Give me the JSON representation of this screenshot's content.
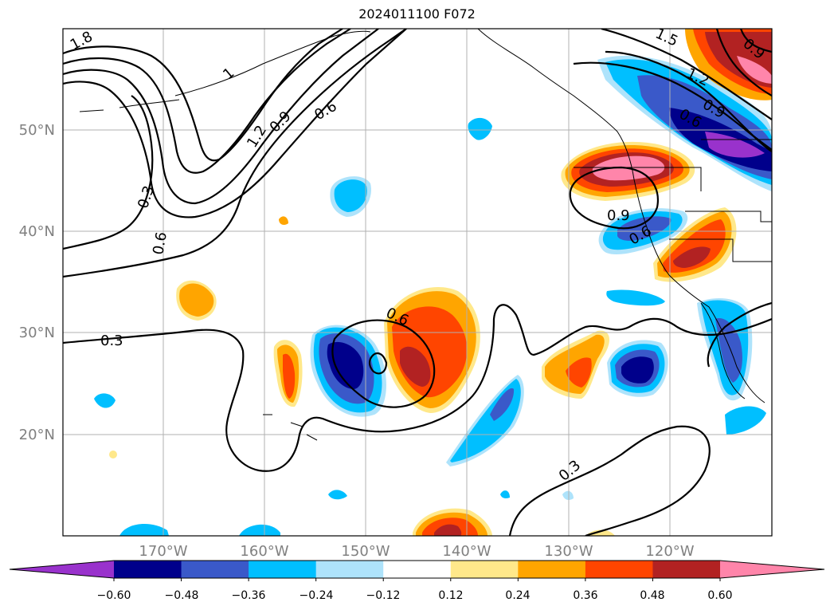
{
  "title": "2024011100 F072",
  "lon_labels": [
    "170°W",
    "160°W",
    "150°W",
    "140°W",
    "130°W",
    "120°W"
  ],
  "lat_labels": [
    "50°N",
    "40°N",
    "30°N",
    "20°N"
  ],
  "contour_labels": [
    "1.8",
    "1",
    "1.5",
    "0.9",
    "1.2",
    "0.9",
    "0.6",
    "0.9",
    "0.6",
    "1.2",
    "0.3",
    "0.6",
    "0.9",
    "0.6",
    "0.3",
    "0.6",
    "0.3"
  ],
  "colorbar": {
    "tick_labels": [
      "−0.60",
      "−0.48",
      "−0.36",
      "−0.24",
      "−0.12",
      "0.12",
      "0.24",
      "0.36",
      "0.48",
      "0.60"
    ],
    "colors": [
      "#9932cc",
      "#00008b",
      "#3a59c9",
      "#00bfff",
      "#aee3fb",
      "#ffffff",
      "#ffe88a",
      "#ffa500",
      "#ff4500",
      "#b22222",
      "#ff85aa"
    ]
  },
  "fill_colors": {
    "pink": "#ff85aa",
    "darkred": "#b22222",
    "red": "#ff4500",
    "orange": "#ffa500",
    "yellow": "#ffe88a",
    "lightblue": "#aee3fb",
    "cyan": "#00bfff",
    "blue": "#3a59c9",
    "navy": "#00008b",
    "purple": "#9932cc"
  }
}
